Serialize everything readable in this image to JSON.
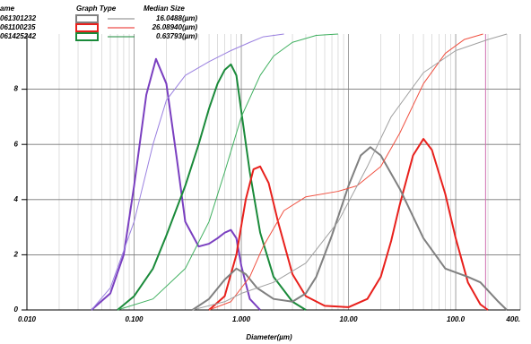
{
  "chart_data": {
    "type": "line",
    "x_label": "Diameter(µm)",
    "xlog": true,
    "xlim": [
      0.01,
      400
    ],
    "ylim": [
      0,
      10
    ],
    "xticks": [
      {
        "value": 0.01,
        "label": "0.010"
      },
      {
        "value": 0.1,
        "label": "0.100"
      },
      {
        "value": 1,
        "label": "1.000"
      },
      {
        "value": 10,
        "label": "10.00"
      },
      {
        "value": 100,
        "label": "100.0"
      },
      {
        "value": 400,
        "label": "400."
      }
    ],
    "yticks": [
      0,
      2,
      4,
      6,
      8
    ],
    "grid": true,
    "reference_line": {
      "x": 190,
      "color": "#d070b0"
    },
    "legend": {
      "headers": [
        "ame",
        "Graph Type",
        "Median Size"
      ],
      "rows": [
        {
          "name": "061301232",
          "median": "16.0488(µm)",
          "color": "#808080"
        },
        {
          "name": "061100235",
          "median": "26.08940(µm)",
          "color": "#e8201c"
        },
        {
          "name": "061425242",
          "median": "0.63793(µm)",
          "color": "#1a8a3a"
        }
      ]
    },
    "series": [
      {
        "color": "#7a3fc0",
        "width": 2,
        "x": [
          0.04,
          0.06,
          0.08,
          0.1,
          0.13,
          0.16,
          0.2,
          0.25,
          0.3,
          0.4,
          0.5,
          0.6,
          0.7,
          0.8,
          0.9,
          1.0,
          1.2,
          1.5
        ],
        "values": [
          0,
          0.6,
          2,
          4.5,
          7.8,
          9.1,
          8.2,
          5.5,
          3.2,
          2.3,
          2.4,
          2.6,
          2.8,
          2.9,
          2.6,
          1.6,
          0.4,
          0
        ]
      },
      {
        "color": "#1a8a3a",
        "width": 2,
        "x": [
          0.07,
          0.1,
          0.15,
          0.2,
          0.3,
          0.4,
          0.5,
          0.6,
          0.7,
          0.8,
          0.9,
          1.0,
          1.2,
          1.5,
          2,
          3,
          4
        ],
        "values": [
          0,
          0.5,
          1.5,
          2.7,
          4.5,
          6.0,
          7.3,
          8.2,
          8.7,
          8.9,
          8.5,
          7.2,
          5.0,
          2.8,
          1.2,
          0.3,
          0
        ]
      },
      {
        "color": "#e8201c",
        "width": 2,
        "x": [
          0.5,
          0.7,
          0.9,
          1.1,
          1.3,
          1.5,
          1.8,
          2.2,
          3,
          4,
          6,
          10,
          15,
          20,
          25,
          30,
          40,
          50,
          60,
          80,
          100,
          130,
          170,
          200
        ],
        "values": [
          0,
          0.5,
          2,
          4.0,
          5.1,
          5.2,
          4.6,
          3.2,
          1.3,
          0.5,
          0.15,
          0.1,
          0.4,
          1.2,
          2.5,
          3.8,
          5.6,
          6.2,
          5.8,
          4.2,
          2.6,
          1.0,
          0.2,
          0
        ]
      },
      {
        "color": "#808080",
        "width": 2,
        "x": [
          0.35,
          0.5,
          0.7,
          0.9,
          1.1,
          1.4,
          2,
          3,
          4,
          5,
          7,
          10,
          13,
          16,
          20,
          30,
          50,
          80,
          130,
          170,
          250,
          300
        ],
        "values": [
          0,
          0.4,
          1.1,
          1.5,
          1.3,
          0.8,
          0.4,
          0.3,
          0.6,
          1.2,
          2.7,
          4.5,
          5.6,
          5.9,
          5.6,
          4.4,
          2.6,
          1.5,
          1.2,
          1.0,
          0.3,
          0
        ]
      },
      {
        "color": "#9a80e0",
        "width": 1,
        "x": [
          0.04,
          0.06,
          0.1,
          0.15,
          0.2,
          0.3,
          0.5,
          0.8,
          1.2,
          1.6,
          2.5
        ],
        "values": [
          0,
          0.8,
          3.2,
          6.0,
          7.6,
          8.5,
          9.0,
          9.4,
          9.7,
          9.9,
          10
        ]
      },
      {
        "color": "#40b060",
        "width": 1,
        "x": [
          0.07,
          0.15,
          0.3,
          0.5,
          0.7,
          1,
          1.5,
          2,
          3,
          5,
          8
        ],
        "values": [
          0,
          0.4,
          1.5,
          3.2,
          5.0,
          7.0,
          8.5,
          9.2,
          9.7,
          9.95,
          10
        ]
      },
      {
        "color": "#f05040",
        "width": 1,
        "x": [
          0.5,
          0.8,
          1.2,
          1.6,
          2.5,
          4,
          8,
          12,
          20,
          30,
          50,
          80,
          120,
          180
        ],
        "values": [
          0,
          0.3,
          1.2,
          2.3,
          3.6,
          4.1,
          4.3,
          4.5,
          5.2,
          6.4,
          8.2,
          9.3,
          9.8,
          10
        ]
      },
      {
        "color": "#a0a0a0",
        "width": 1,
        "x": [
          0.35,
          0.7,
          1,
          2,
          4,
          8,
          15,
          25,
          50,
          100,
          200,
          300
        ],
        "values": [
          0,
          0.3,
          0.6,
          1.0,
          1.7,
          3.2,
          5.2,
          7.0,
          8.6,
          9.4,
          9.8,
          10
        ]
      }
    ]
  }
}
